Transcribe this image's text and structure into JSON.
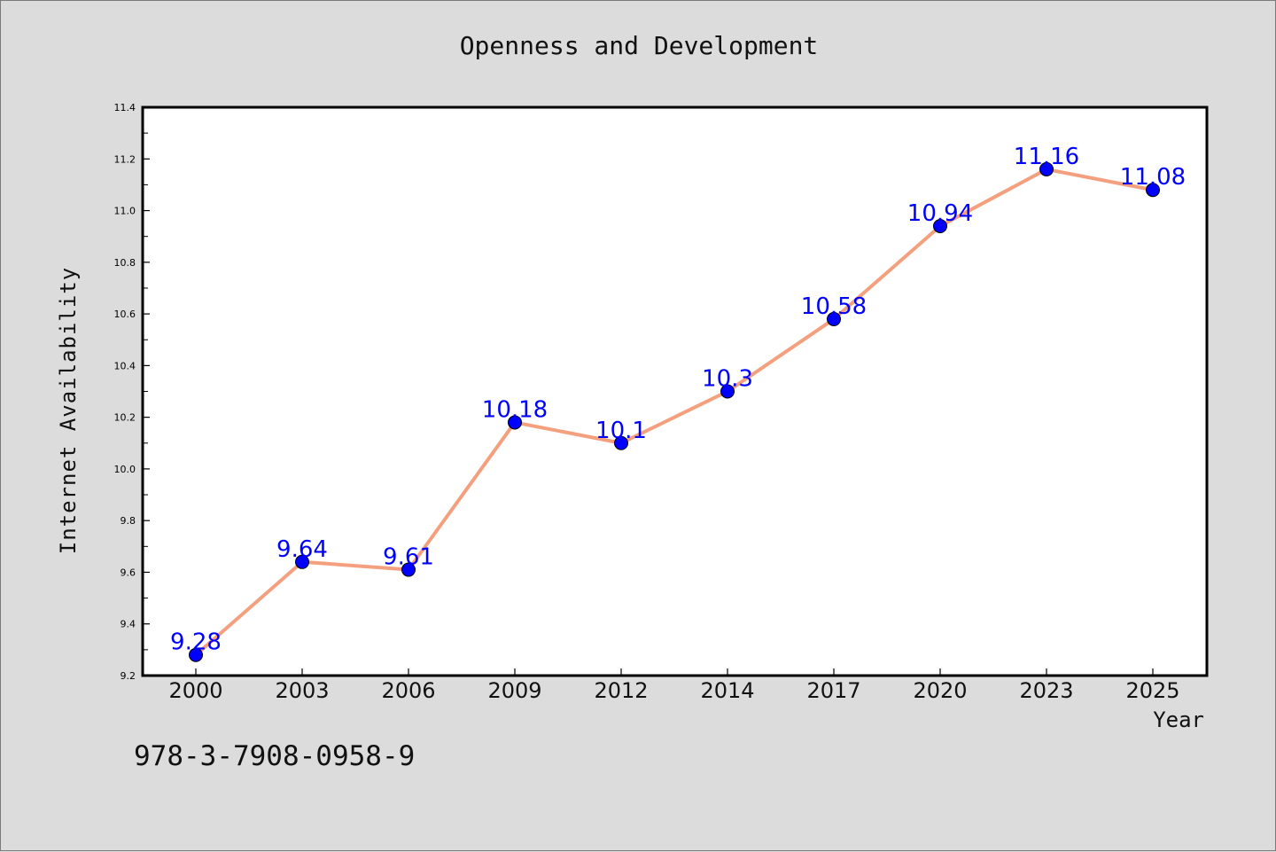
{
  "chart_data": {
    "type": "line",
    "title": "Openness and Development",
    "xlabel": "Year",
    "ylabel": "Internet Availability",
    "categories": [
      "2000",
      "2003",
      "2006",
      "2009",
      "2012",
      "2014",
      "2017",
      "2020",
      "2023",
      "2025"
    ],
    "values": [
      9.28,
      9.64,
      9.61,
      10.18,
      10.1,
      10.3,
      10.58,
      10.94,
      11.16,
      11.08
    ],
    "data_labels": [
      "9.28",
      "9.64",
      "9.61",
      "10.18",
      "10.1",
      "10.3",
      "10.58",
      "10.94",
      "11.16",
      "11.08"
    ],
    "ylim": [
      9.2,
      11.4
    ],
    "yticks": [
      9.2,
      9.4,
      9.6,
      9.8,
      10.0,
      10.2,
      10.4,
      10.6,
      10.8,
      11.0,
      11.2,
      11.4
    ],
    "ytick_labels": [
      "9.2",
      "9.4",
      "9.6",
      "9.8",
      "10.0",
      "10.2",
      "10.4",
      "10.6",
      "10.8",
      "11.0",
      "11.2",
      "11.4"
    ],
    "grid": false,
    "colors": {
      "line": "#f4a07e",
      "marker": "#0000ff",
      "marker_edge": "#000000",
      "data_label": "#0000ff",
      "background": "#dcdcdc",
      "plot_background": "#ffffff"
    }
  },
  "footnote": "978-3-7908-0958-9"
}
